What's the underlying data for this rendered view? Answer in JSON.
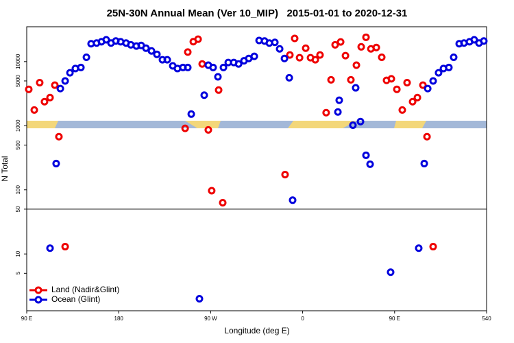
{
  "chart_data": {
    "type": "scatter",
    "log_y": true,
    "title": "25N-30N Annual Mean (Ver 10_MIP)   2015-01-01 to 2020-12-31",
    "xlabel": "Longitude (deg E)",
    "ylabel": "N Total",
    "xlim": [
      90,
      540
    ],
    "ylim": [
      1.3,
      35000
    ],
    "xticks": [
      {
        "value": 90,
        "label": "90 E"
      },
      180,
      {
        "value": 270,
        "label": "90 W"
      },
      {
        "value": 360,
        "label": "0"
      },
      {
        "value": 450,
        "label": "90 E"
      },
      540
    ],
    "yticks": [
      5,
      10,
      50,
      100,
      500,
      1000,
      5000,
      10000
    ],
    "hline": 50,
    "legend": "bottom-left",
    "series": [
      {
        "name": "Land (Nadir&Glint)",
        "color": "#ee0000",
        "x": [
          92,
          97.4,
          102.7,
          107.4,
          112.8,
          117.5,
          121.5,
          127.6,
          245,
          247.6,
          253,
          257.7,
          261.7,
          267.7,
          271,
          277.8,
          281.8,
          342.8,
          347.5,
          352.2,
          357,
          363,
          367.7,
          372.4,
          377,
          383,
          387.8,
          391.8,
          397.2,
          401.9,
          407.2,
          412.6,
          417.3,
          422,
          426.8,
          432.1,
          437.4,
          442.1,
          446.8,
          452.2,
          457.5,
          462.2,
          467.6,
          472.3,
          477.7,
          481.7,
          487.7
        ],
        "values": [
          3700,
          1760,
          4700,
          2370,
          2750,
          4300,
          675,
          13,
          910,
          14100,
          20500,
          22400,
          9200,
          860,
          97,
          3600,
          63,
          173,
          12700,
          23000,
          11500,
          16200,
          11500,
          10700,
          12700,
          1600,
          5200,
          18300,
          20300,
          12400,
          5200,
          8800,
          17000,
          24000,
          15800,
          16600,
          11700,
          5100,
          5400,
          3700,
          1760,
          4700,
          2370,
          2750,
          4300,
          675,
          13
        ]
      },
      {
        "name": "Ocean (Glint)",
        "color": "#0000dd",
        "x": [
          112.8,
          118.8,
          122.9,
          127.6,
          132.3,
          137.6,
          143,
          148.4,
          153,
          158.4,
          163.1,
          167.8,
          172.5,
          177.2,
          181.9,
          187.2,
          191.9,
          197.3,
          202,
          206.7,
          212.1,
          217.4,
          222.8,
          227.5,
          232.9,
          237.5,
          242.9,
          247.6,
          251,
          259,
          263.7,
          267.7,
          272.4,
          277.1,
          282.5,
          287.2,
          292.6,
          297.3,
          302.6,
          307.3,
          312.7,
          317.4,
          322.7,
          327.4,
          332.8,
          337.5,
          342.2,
          346.9,
          350.2,
          394.5,
          395.8,
          409.2,
          411.9,
          416.6,
          422,
          426,
          446.1,
          473.6,
          479,
          482.4,
          487.7,
          493,
          497.8,
          503.1,
          507.8,
          513.2,
          517.9,
          523.3,
          527.9,
          532.6,
          537.3
        ],
        "values": [
          12.3,
          257,
          3800,
          5000,
          6700,
          7800,
          8100,
          11700,
          19000,
          19500,
          20400,
          21900,
          19500,
          21000,
          20400,
          19500,
          18300,
          17500,
          17900,
          16200,
          14700,
          13000,
          10700,
          10700,
          8600,
          7800,
          8100,
          8100,
          1520,
          2,
          3000,
          8800,
          8100,
          5800,
          8100,
          9700,
          9700,
          9200,
          10300,
          11200,
          12100,
          21400,
          21000,
          19500,
          20000,
          15800,
          11200,
          5600,
          69,
          1640,
          2500,
          1020,
          3900,
          1160,
          346,
          251,
          5.2,
          12.3,
          257,
          3800,
          5000,
          6700,
          7800,
          8100,
          11700,
          19000,
          19500,
          20400,
          21900,
          19500,
          21000
        ]
      }
    ]
  }
}
